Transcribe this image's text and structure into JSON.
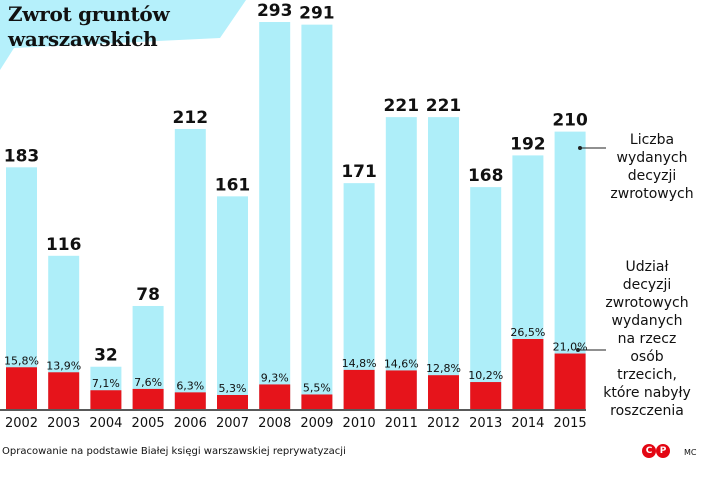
{
  "title_lines": [
    "Zwrot gruntów",
    "warszawskich"
  ],
  "legend": {
    "light": [
      "Liczba",
      "wydanych",
      "decyzji",
      "zwrotowych"
    ],
    "red": [
      "Udział",
      "decyzji",
      "zwrotowych",
      "wydanych",
      "na rzecz",
      "osób",
      "trzecich,",
      "które nabyły",
      "roszczenia"
    ]
  },
  "footer": "Opracowanie na podstawie Białej księgi warszawskiej reprywatyzacji",
  "logo_letters": [
    "C",
    "P"
  ],
  "signature": "MC",
  "colors": {
    "light_bars": "#aeeef9",
    "red_bars": "#e6141b",
    "title_badge": "#b5f0fb"
  },
  "chart_data": {
    "type": "bar",
    "categories": [
      "2002",
      "2003",
      "2004",
      "2005",
      "2006",
      "2007",
      "2008",
      "2009",
      "2010",
      "2011",
      "2012",
      "2013",
      "2014",
      "2015"
    ],
    "series": [
      {
        "name": "Liczba wydanych decyzji zwrotowych",
        "values": [
          183,
          116,
          32,
          78,
          212,
          161,
          293,
          291,
          171,
          221,
          221,
          168,
          192,
          210
        ],
        "labels": [
          "183",
          "116",
          "32",
          "78",
          "212",
          "161",
          "293",
          "291",
          "171",
          "221",
          "221",
          "168",
          "192",
          "210"
        ]
      },
      {
        "name": "Udział decyzji zwrotowych wydanych na rzecz osób trzecich, które nabyły roszczenia",
        "values": [
          15.8,
          13.9,
          7.1,
          7.6,
          6.3,
          5.3,
          9.3,
          5.5,
          14.8,
          14.6,
          12.8,
          10.2,
          26.5,
          21.0
        ],
        "labels": [
          "15,8%",
          "13,9%",
          "7,1%",
          "7,6%",
          "6,3%",
          "5,3%",
          "9,3%",
          "5,5%",
          "14,8%",
          "14,6%",
          "12,8%",
          "10,2%",
          "26,5%",
          "21,0%"
        ]
      }
    ],
    "grid": false,
    "legend_position": "right"
  }
}
